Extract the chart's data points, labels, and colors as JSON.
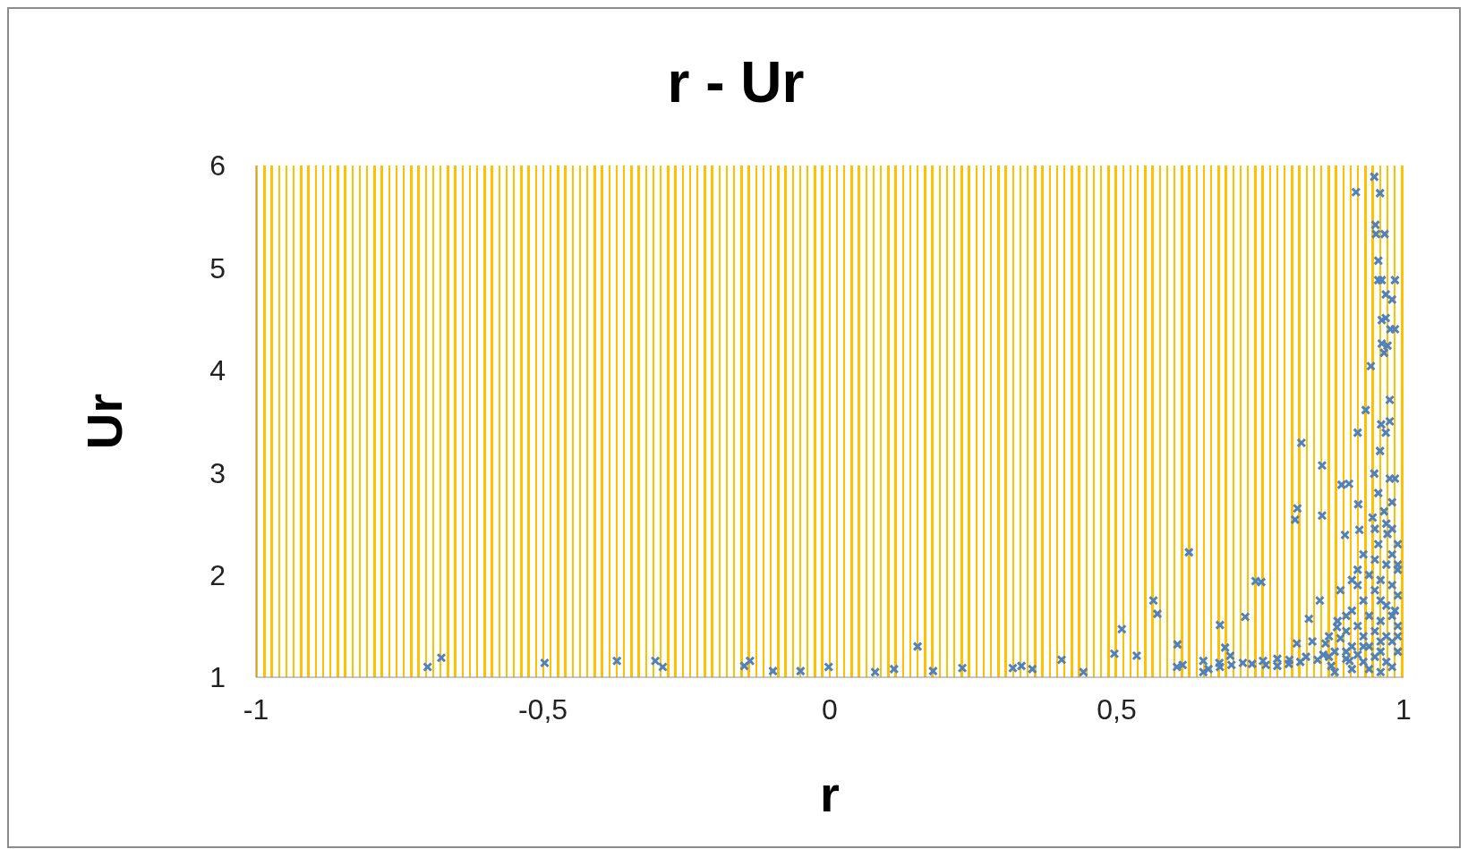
{
  "chart_data": {
    "type": "scatter",
    "title": "r - Ur",
    "xlabel": "r",
    "ylabel": "Ur",
    "marker": "cross",
    "xlim": [
      -1,
      1
    ],
    "xticks": [
      -1,
      {
        "value": -0.5,
        "label": "-0,5"
      },
      0,
      {
        "value": 0.5,
        "label": "0,5"
      },
      1
    ],
    "ylim": [
      1,
      6
    ],
    "yticks": [
      1,
      2,
      3,
      4,
      5,
      6
    ],
    "series": [
      {
        "color": "#4f81bd",
        "x": [
          -0.701,
          -0.677,
          -0.497,
          -0.371,
          -0.304,
          -0.291,
          -0.149,
          -0.139,
          -0.099,
          -0.051,
          -0.002,
          0.079,
          0.112,
          0.153,
          0.18,
          0.231,
          0.319,
          0.334,
          0.353,
          0.404,
          0.442,
          0.496,
          0.509,
          0.535,
          0.564,
          0.571,
          0.606,
          0.605,
          0.615,
          0.626,
          0.651,
          0.651,
          0.679,
          0.68,
          0.689,
          0.698,
          0.724,
          0.742,
          0.752,
          0.736,
          0.755,
          0.78,
          0.801,
          0.811,
          0.815,
          0.822,
          0.814,
          0.835,
          0.841,
          0.854,
          0.858,
          0.858,
          0.864,
          0.874,
          0.884,
          0.892,
          0.905,
          0.898,
          0.906,
          0.917,
          0.92,
          0.921,
          0.923,
          0.934,
          0.943,
          0.949,
          0.951,
          0.952,
          0.956,
          0.956,
          0.959,
          0.961,
          0.962,
          0.967,
          0.969,
          0.969,
          0.962,
          0.962,
          0.972,
          0.966,
          0.977,
          0.98,
          0.985,
          0.985,
          0.976,
          0.976,
          0.969,
          0.959,
          0.949,
          0.976,
          0.985,
          0.956,
          0.966,
          0.98,
          0.946,
          0.972,
          0.956,
          0.93,
          0.95,
          0.97,
          0.99,
          0.94,
          0.96,
          0.98,
          0.92,
          0.95,
          0.99,
          0.93,
          0.97,
          0.91,
          0.94,
          0.98,
          0.96,
          0.92,
          0.99,
          0.9,
          0.95,
          0.97,
          0.93,
          0.89,
          0.98,
          0.94,
          0.91,
          0.96,
          0.99,
          0.92,
          0.88,
          0.95,
          0.97,
          0.93,
          0.9,
          0.98,
          0.94,
          0.96,
          0.91,
          0.87,
          0.86,
          0.85,
          0.83,
          0.82,
          0.8,
          0.78,
          0.76,
          0.72,
          0.7,
          0.68,
          0.66,
          0.88,
          0.9,
          0.89,
          0.91,
          0.98,
          0.99,
          0.97,
          0.98,
          0.95,
          0.99,
          0.96,
          0.92,
          0.885,
          0.87,
          0.99,
          0.985,
          0.96,
          0.93,
          0.9
        ],
        "values": [
          1.1,
          1.19,
          1.14,
          1.16,
          1.16,
          1.1,
          1.11,
          1.16,
          1.06,
          1.06,
          1.1,
          1.05,
          1.08,
          1.3,
          1.06,
          1.09,
          1.09,
          1.11,
          1.08,
          1.17,
          1.05,
          1.23,
          1.47,
          1.21,
          1.75,
          1.62,
          1.32,
          1.1,
          1.12,
          2.22,
          1.16,
          1.05,
          1.14,
          1.51,
          1.29,
          1.21,
          1.59,
          1.94,
          1.93,
          1.13,
          1.16,
          1.11,
          1.17,
          2.54,
          2.65,
          3.29,
          1.33,
          1.57,
          1.35,
          1.75,
          2.58,
          3.07,
          1.33,
          1.11,
          1.49,
          2.88,
          2.89,
          2.39,
          1.16,
          5.74,
          3.39,
          2.69,
          2.44,
          3.61,
          4.04,
          5.89,
          5.42,
          5.33,
          5.07,
          4.88,
          5.73,
          3.47,
          4.88,
          5.33,
          4.74,
          4.51,
          4.49,
          4.26,
          4.24,
          4.17,
          4.4,
          4.69,
          4.88,
          4.4,
          3.71,
          3.5,
          3.39,
          3.21,
          2.99,
          2.94,
          2.94,
          2.8,
          2.62,
          2.71,
          2.56,
          2.4,
          2.3,
          2.2,
          2.15,
          2.1,
          2.05,
          2.0,
          1.95,
          1.9,
          1.9,
          1.85,
          1.8,
          1.75,
          1.7,
          1.65,
          1.6,
          1.6,
          1.55,
          1.5,
          1.5,
          1.45,
          1.45,
          1.4,
          1.4,
          1.38,
          1.35,
          1.3,
          1.3,
          1.25,
          1.25,
          1.22,
          1.25,
          1.2,
          1.15,
          1.15,
          1.18,
          1.1,
          1.08,
          1.05,
          1.08,
          1.2,
          1.22,
          1.17,
          1.2,
          1.15,
          1.13,
          1.18,
          1.12,
          1.14,
          1.12,
          1.1,
          1.08,
          1.05,
          1.6,
          1.85,
          1.95,
          2.2,
          2.3,
          2.5,
          2.45,
          2.45,
          2.1,
          1.75,
          2.05,
          1.55,
          1.4,
          1.4,
          1.65,
          1.35,
          1.3,
          1.25
        ]
      }
    ]
  }
}
